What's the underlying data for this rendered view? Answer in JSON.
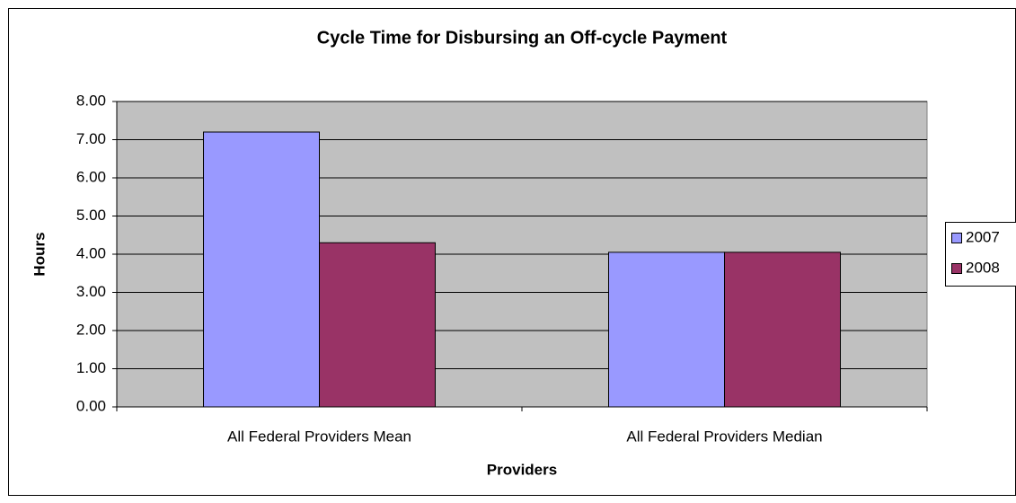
{
  "chart_data": {
    "type": "bar",
    "title": "Cycle Time for Disbursing an Off-cycle Payment",
    "xlabel": "Providers",
    "ylabel": "Hours",
    "categories": [
      "All Federal Providers Mean",
      "All Federal Providers Median"
    ],
    "series": [
      {
        "name": "2007",
        "color": "#9999ff",
        "values": [
          7.2,
          4.05
        ]
      },
      {
        "name": "2008",
        "color": "#993366",
        "values": [
          4.3,
          4.05
        ]
      }
    ],
    "ylim": [
      0,
      8
    ],
    "yticks": [
      {
        "value": 0,
        "label": "0.00"
      },
      {
        "value": 1,
        "label": "1.00"
      },
      {
        "value": 2,
        "label": "2.00"
      },
      {
        "value": 3,
        "label": "3.00"
      },
      {
        "value": 4,
        "label": "4.00"
      },
      {
        "value": 5,
        "label": "5.00"
      },
      {
        "value": 6,
        "label": "6.00"
      },
      {
        "value": 7,
        "label": "7.00"
      },
      {
        "value": 8,
        "label": "8.00"
      }
    ],
    "grid": true,
    "legend": "right"
  }
}
